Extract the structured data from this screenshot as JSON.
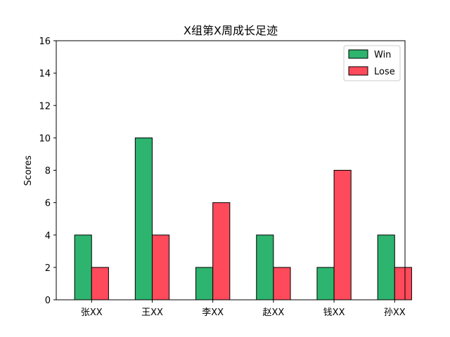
{
  "chart_data": {
    "type": "bar",
    "title": "X组第X周成长足迹",
    "xlabel": "",
    "ylabel": "Scores",
    "categories": [
      "张XX",
      "王XX",
      "李XX",
      "赵XX",
      "钱XX",
      "孙XX"
    ],
    "series": [
      {
        "name": "Win",
        "values": [
          4,
          10,
          2,
          4,
          2,
          4
        ],
        "color": "#2db46e"
      },
      {
        "name": "Lose",
        "values": [
          2,
          4,
          6,
          2,
          8,
          2
        ],
        "color": "#fe4a5a"
      }
    ],
    "ylim": [
      0,
      16
    ],
    "yticks": [
      "0",
      "2",
      "4",
      "6",
      "8",
      "10",
      "12",
      "14",
      "16"
    ],
    "grid": false,
    "legend_position": "top-right"
  }
}
